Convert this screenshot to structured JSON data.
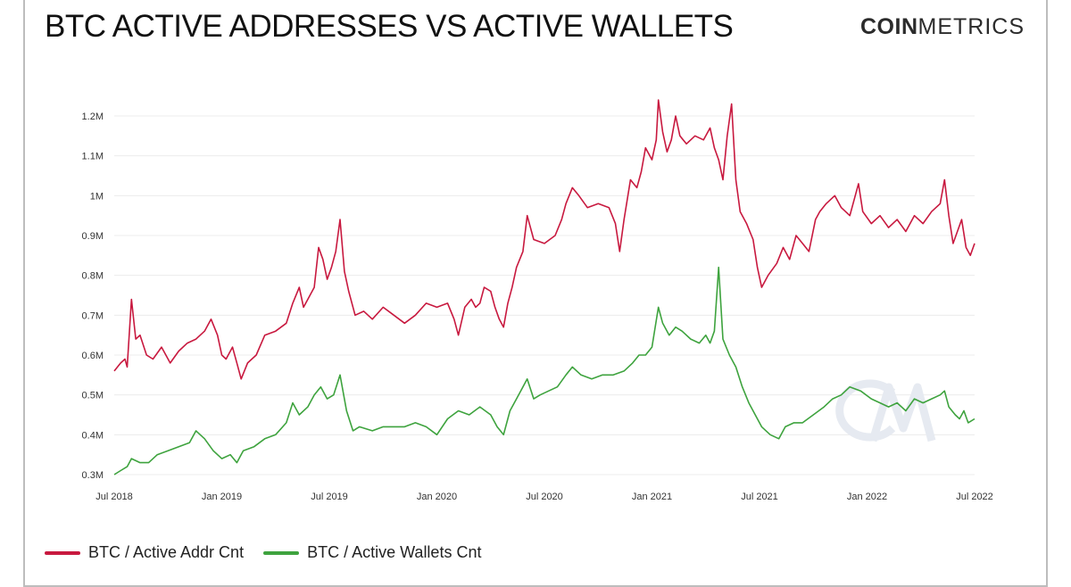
{
  "header": {
    "title": "BTC ACTIVE ADDRESSES VS ACTIVE WALLETS",
    "brand_bold": "COIN",
    "brand_light": "METRICS"
  },
  "colors": {
    "addr": "#c8193f",
    "wallets": "#3ea33e",
    "grid": "#ececec",
    "watermark": "#e6eaf1"
  },
  "icons": {
    "watermark": "cm-watermark-icon"
  },
  "chart_data": {
    "type": "line",
    "title": "BTC ACTIVE ADDRESSES VS ACTIVE WALLETS",
    "xlabel": "",
    "ylabel": "",
    "ylim": [
      0.3,
      1.2
    ],
    "xlim": [
      2018.5,
      2022.5
    ],
    "grid": true,
    "legend_position": "bottom-left",
    "y_ticks": [
      {
        "value": 0.3,
        "label": "0.3M"
      },
      {
        "value": 0.4,
        "label": "0.4M"
      },
      {
        "value": 0.5,
        "label": "0.5M"
      },
      {
        "value": 0.6,
        "label": "0.6M"
      },
      {
        "value": 0.7,
        "label": "0.7M"
      },
      {
        "value": 0.8,
        "label": "0.8M"
      },
      {
        "value": 0.9,
        "label": "0.9M"
      },
      {
        "value": 1.0,
        "label": "1M"
      },
      {
        "value": 1.1,
        "label": "1.1M"
      },
      {
        "value": 1.2,
        "label": "1.2M"
      }
    ],
    "x_ticks": [
      {
        "value": 2018.5,
        "label": "Jul 2018"
      },
      {
        "value": 2019.0,
        "label": "Jan 2019"
      },
      {
        "value": 2019.5,
        "label": "Jul 2019"
      },
      {
        "value": 2020.0,
        "label": "Jan 2020"
      },
      {
        "value": 2020.5,
        "label": "Jul 2020"
      },
      {
        "value": 2021.0,
        "label": "Jan 2021"
      },
      {
        "value": 2021.5,
        "label": "Jul 2021"
      },
      {
        "value": 2022.0,
        "label": "Jan 2022"
      },
      {
        "value": 2022.5,
        "label": "Jul 2022"
      }
    ],
    "series": [
      {
        "name": "BTC / Active Addr Cnt",
        "color": "#c8193f",
        "points": [
          [
            2018.5,
            0.56
          ],
          [
            2018.53,
            0.58
          ],
          [
            2018.55,
            0.59
          ],
          [
            2018.56,
            0.57
          ],
          [
            2018.58,
            0.74
          ],
          [
            2018.6,
            0.64
          ],
          [
            2018.62,
            0.65
          ],
          [
            2018.65,
            0.6
          ],
          [
            2018.68,
            0.59
          ],
          [
            2018.72,
            0.62
          ],
          [
            2018.76,
            0.58
          ],
          [
            2018.8,
            0.61
          ],
          [
            2018.84,
            0.63
          ],
          [
            2018.88,
            0.64
          ],
          [
            2018.92,
            0.66
          ],
          [
            2018.95,
            0.69
          ],
          [
            2018.98,
            0.65
          ],
          [
            2019.0,
            0.6
          ],
          [
            2019.02,
            0.59
          ],
          [
            2019.05,
            0.62
          ],
          [
            2019.07,
            0.58
          ],
          [
            2019.09,
            0.54
          ],
          [
            2019.12,
            0.58
          ],
          [
            2019.16,
            0.6
          ],
          [
            2019.2,
            0.65
          ],
          [
            2019.25,
            0.66
          ],
          [
            2019.3,
            0.68
          ],
          [
            2019.33,
            0.73
          ],
          [
            2019.36,
            0.77
          ],
          [
            2019.38,
            0.72
          ],
          [
            2019.4,
            0.74
          ],
          [
            2019.43,
            0.77
          ],
          [
            2019.45,
            0.87
          ],
          [
            2019.47,
            0.84
          ],
          [
            2019.49,
            0.79
          ],
          [
            2019.51,
            0.82
          ],
          [
            2019.53,
            0.86
          ],
          [
            2019.55,
            0.94
          ],
          [
            2019.57,
            0.81
          ],
          [
            2019.59,
            0.76
          ],
          [
            2019.62,
            0.7
          ],
          [
            2019.66,
            0.71
          ],
          [
            2019.7,
            0.69
          ],
          [
            2019.75,
            0.72
          ],
          [
            2019.8,
            0.7
          ],
          [
            2019.85,
            0.68
          ],
          [
            2019.9,
            0.7
          ],
          [
            2019.95,
            0.73
          ],
          [
            2020.0,
            0.72
          ],
          [
            2020.05,
            0.73
          ],
          [
            2020.08,
            0.69
          ],
          [
            2020.1,
            0.65
          ],
          [
            2020.13,
            0.72
          ],
          [
            2020.16,
            0.74
          ],
          [
            2020.18,
            0.72
          ],
          [
            2020.2,
            0.73
          ],
          [
            2020.22,
            0.77
          ],
          [
            2020.25,
            0.76
          ],
          [
            2020.27,
            0.72
          ],
          [
            2020.29,
            0.69
          ],
          [
            2020.31,
            0.67
          ],
          [
            2020.33,
            0.73
          ],
          [
            2020.35,
            0.77
          ],
          [
            2020.37,
            0.82
          ],
          [
            2020.4,
            0.86
          ],
          [
            2020.42,
            0.95
          ],
          [
            2020.45,
            0.89
          ],
          [
            2020.5,
            0.88
          ],
          [
            2020.55,
            0.9
          ],
          [
            2020.58,
            0.94
          ],
          [
            2020.6,
            0.98
          ],
          [
            2020.63,
            1.02
          ],
          [
            2020.66,
            1.0
          ],
          [
            2020.7,
            0.97
          ],
          [
            2020.75,
            0.98
          ],
          [
            2020.8,
            0.97
          ],
          [
            2020.83,
            0.93
          ],
          [
            2020.85,
            0.86
          ],
          [
            2020.87,
            0.94
          ],
          [
            2020.9,
            1.04
          ],
          [
            2020.93,
            1.02
          ],
          [
            2020.95,
            1.06
          ],
          [
            2020.97,
            1.12
          ],
          [
            2021.0,
            1.09
          ],
          [
            2021.02,
            1.14
          ],
          [
            2021.03,
            1.24
          ],
          [
            2021.05,
            1.16
          ],
          [
            2021.07,
            1.11
          ],
          [
            2021.09,
            1.14
          ],
          [
            2021.11,
            1.2
          ],
          [
            2021.13,
            1.15
          ],
          [
            2021.16,
            1.13
          ],
          [
            2021.2,
            1.15
          ],
          [
            2021.24,
            1.14
          ],
          [
            2021.27,
            1.17
          ],
          [
            2021.29,
            1.12
          ],
          [
            2021.31,
            1.09
          ],
          [
            2021.33,
            1.04
          ],
          [
            2021.35,
            1.15
          ],
          [
            2021.37,
            1.23
          ],
          [
            2021.39,
            1.04
          ],
          [
            2021.41,
            0.96
          ],
          [
            2021.44,
            0.93
          ],
          [
            2021.47,
            0.89
          ],
          [
            2021.49,
            0.82
          ],
          [
            2021.51,
            0.77
          ],
          [
            2021.54,
            0.8
          ],
          [
            2021.58,
            0.83
          ],
          [
            2021.61,
            0.87
          ],
          [
            2021.64,
            0.84
          ],
          [
            2021.67,
            0.9
          ],
          [
            2021.7,
            0.88
          ],
          [
            2021.73,
            0.86
          ],
          [
            2021.76,
            0.94
          ],
          [
            2021.78,
            0.96
          ],
          [
            2021.81,
            0.98
          ],
          [
            2021.85,
            1.0
          ],
          [
            2021.88,
            0.97
          ],
          [
            2021.92,
            0.95
          ],
          [
            2021.96,
            1.03
          ],
          [
            2021.98,
            0.96
          ],
          [
            2022.02,
            0.93
          ],
          [
            2022.06,
            0.95
          ],
          [
            2022.1,
            0.92
          ],
          [
            2022.14,
            0.94
          ],
          [
            2022.18,
            0.91
          ],
          [
            2022.22,
            0.95
          ],
          [
            2022.26,
            0.93
          ],
          [
            2022.3,
            0.96
          ],
          [
            2022.34,
            0.98
          ],
          [
            2022.36,
            1.04
          ],
          [
            2022.38,
            0.95
          ],
          [
            2022.4,
            0.88
          ],
          [
            2022.42,
            0.91
          ],
          [
            2022.44,
            0.94
          ],
          [
            2022.46,
            0.87
          ],
          [
            2022.48,
            0.85
          ],
          [
            2022.5,
            0.88
          ]
        ]
      },
      {
        "name": "BTC / Active Wallets Cnt",
        "color": "#3ea33e",
        "points": [
          [
            2018.5,
            0.3
          ],
          [
            2018.53,
            0.31
          ],
          [
            2018.56,
            0.32
          ],
          [
            2018.58,
            0.34
          ],
          [
            2018.62,
            0.33
          ],
          [
            2018.66,
            0.33
          ],
          [
            2018.7,
            0.35
          ],
          [
            2018.75,
            0.36
          ],
          [
            2018.8,
            0.37
          ],
          [
            2018.85,
            0.38
          ],
          [
            2018.88,
            0.41
          ],
          [
            2018.92,
            0.39
          ],
          [
            2018.96,
            0.36
          ],
          [
            2019.0,
            0.34
          ],
          [
            2019.04,
            0.35
          ],
          [
            2019.07,
            0.33
          ],
          [
            2019.1,
            0.36
          ],
          [
            2019.15,
            0.37
          ],
          [
            2019.2,
            0.39
          ],
          [
            2019.25,
            0.4
          ],
          [
            2019.3,
            0.43
          ],
          [
            2019.33,
            0.48
          ],
          [
            2019.36,
            0.45
          ],
          [
            2019.4,
            0.47
          ],
          [
            2019.43,
            0.5
          ],
          [
            2019.46,
            0.52
          ],
          [
            2019.49,
            0.49
          ],
          [
            2019.52,
            0.5
          ],
          [
            2019.55,
            0.55
          ],
          [
            2019.58,
            0.46
          ],
          [
            2019.61,
            0.41
          ],
          [
            2019.64,
            0.42
          ],
          [
            2019.7,
            0.41
          ],
          [
            2019.75,
            0.42
          ],
          [
            2019.8,
            0.42
          ],
          [
            2019.85,
            0.42
          ],
          [
            2019.9,
            0.43
          ],
          [
            2019.95,
            0.42
          ],
          [
            2020.0,
            0.4
          ],
          [
            2020.05,
            0.44
          ],
          [
            2020.1,
            0.46
          ],
          [
            2020.15,
            0.45
          ],
          [
            2020.2,
            0.47
          ],
          [
            2020.25,
            0.45
          ],
          [
            2020.28,
            0.42
          ],
          [
            2020.31,
            0.4
          ],
          [
            2020.34,
            0.46
          ],
          [
            2020.37,
            0.49
          ],
          [
            2020.4,
            0.52
          ],
          [
            2020.42,
            0.54
          ],
          [
            2020.45,
            0.49
          ],
          [
            2020.48,
            0.5
          ],
          [
            2020.52,
            0.51
          ],
          [
            2020.56,
            0.52
          ],
          [
            2020.6,
            0.55
          ],
          [
            2020.63,
            0.57
          ],
          [
            2020.67,
            0.55
          ],
          [
            2020.72,
            0.54
          ],
          [
            2020.77,
            0.55
          ],
          [
            2020.82,
            0.55
          ],
          [
            2020.87,
            0.56
          ],
          [
            2020.91,
            0.58
          ],
          [
            2020.94,
            0.6
          ],
          [
            2020.97,
            0.6
          ],
          [
            2021.0,
            0.62
          ],
          [
            2021.03,
            0.72
          ],
          [
            2021.05,
            0.68
          ],
          [
            2021.08,
            0.65
          ],
          [
            2021.11,
            0.67
          ],
          [
            2021.14,
            0.66
          ],
          [
            2021.18,
            0.64
          ],
          [
            2021.22,
            0.63
          ],
          [
            2021.25,
            0.65
          ],
          [
            2021.27,
            0.63
          ],
          [
            2021.29,
            0.66
          ],
          [
            2021.31,
            0.82
          ],
          [
            2021.33,
            0.64
          ],
          [
            2021.36,
            0.6
          ],
          [
            2021.39,
            0.57
          ],
          [
            2021.42,
            0.52
          ],
          [
            2021.45,
            0.48
          ],
          [
            2021.48,
            0.45
          ],
          [
            2021.51,
            0.42
          ],
          [
            2021.55,
            0.4
          ],
          [
            2021.59,
            0.39
          ],
          [
            2021.62,
            0.42
          ],
          [
            2021.66,
            0.43
          ],
          [
            2021.7,
            0.43
          ],
          [
            2021.75,
            0.45
          ],
          [
            2021.8,
            0.47
          ],
          [
            2021.84,
            0.49
          ],
          [
            2021.88,
            0.5
          ],
          [
            2021.92,
            0.52
          ],
          [
            2021.97,
            0.51
          ],
          [
            2022.02,
            0.49
          ],
          [
            2022.06,
            0.48
          ],
          [
            2022.1,
            0.47
          ],
          [
            2022.14,
            0.48
          ],
          [
            2022.18,
            0.46
          ],
          [
            2022.22,
            0.49
          ],
          [
            2022.26,
            0.48
          ],
          [
            2022.3,
            0.49
          ],
          [
            2022.34,
            0.5
          ],
          [
            2022.36,
            0.51
          ],
          [
            2022.38,
            0.47
          ],
          [
            2022.41,
            0.45
          ],
          [
            2022.43,
            0.44
          ],
          [
            2022.45,
            0.46
          ],
          [
            2022.47,
            0.43
          ],
          [
            2022.5,
            0.44
          ]
        ]
      }
    ]
  }
}
